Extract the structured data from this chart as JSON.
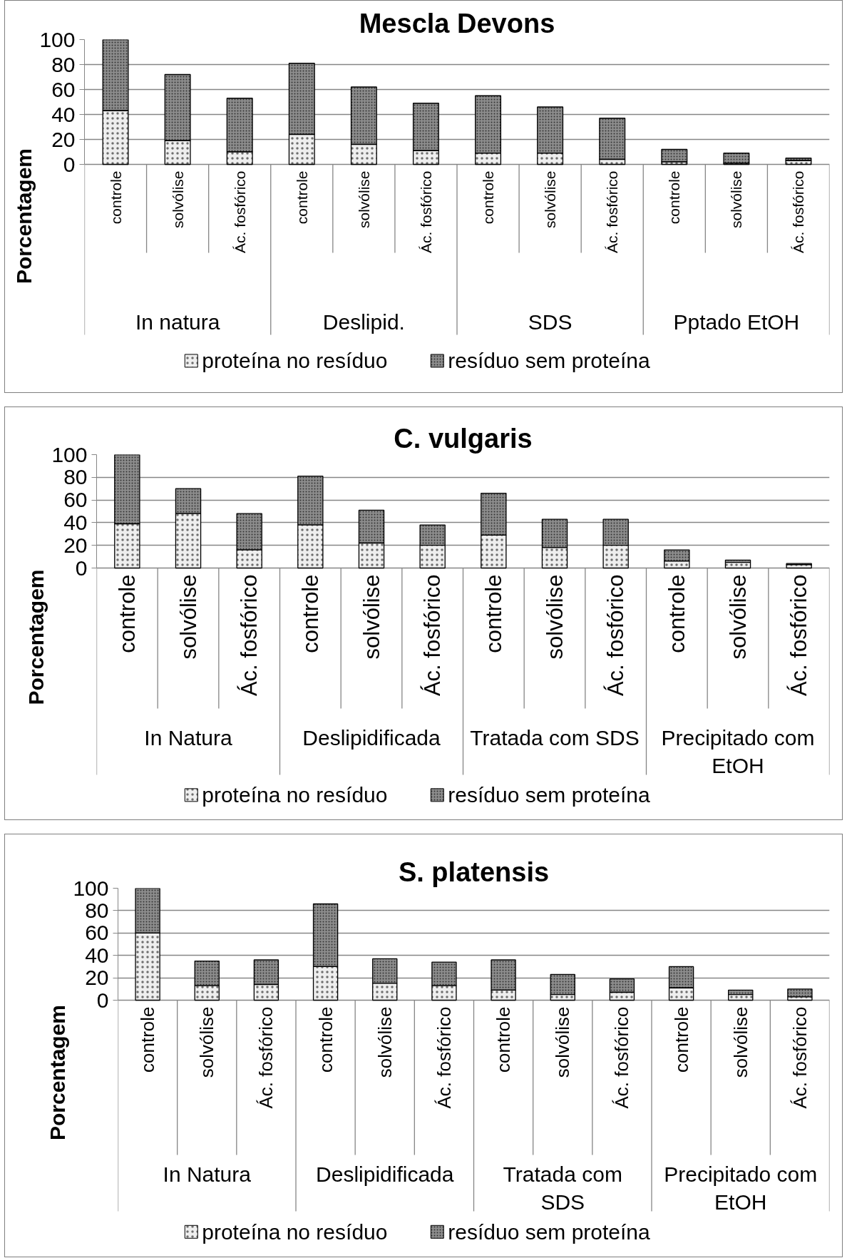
{
  "chart_data": [
    {
      "type": "bar",
      "stacked": true,
      "title": "Mescla Devons",
      "ylabel": "Porcentagem",
      "categories": [
        "controle",
        "solvólise",
        "Ác. fosfórico",
        "controle",
        "solvólise",
        "Ác. fosfórico",
        "controle",
        "solvólise",
        "Ác. fosfórico",
        "controle",
        "solvólise",
        "Ác. fosfórico"
      ],
      "annotations": [
        "In natura",
        "Deslipid.",
        "SDS",
        "Pptado EtOH"
      ],
      "series": [
        {
          "name": "proteína no resíduo",
          "color": "#eeeeee",
          "values": [
            43,
            19,
            10,
            24,
            16,
            11,
            9,
            9,
            4,
            2,
            1,
            3
          ]
        },
        {
          "name": "resíduo sem proteína",
          "color": "#8c8c8c",
          "values": [
            57,
            53,
            43,
            57,
            46,
            38,
            46,
            37,
            33,
            10,
            8,
            2
          ]
        }
      ],
      "ylim": [
        0,
        100
      ],
      "yticks": [
        0,
        20,
        40,
        60,
        80,
        100
      ],
      "grid": "y",
      "legend": "bottom"
    },
    {
      "type": "bar",
      "stacked": true,
      "title": "C. vulgaris",
      "ylabel": "Porcentagem",
      "categories": [
        "controle",
        "solvólise",
        "Ác. fosfórico",
        "controle",
        "solvólise",
        "Ác. fosfórico",
        "controle",
        "solvólise",
        "Ác. fosfórico",
        "controle",
        "solvólise",
        "Ác. fosfórico"
      ],
      "annotations": [
        "In Natura",
        "Deslipidificada",
        "Tratada com SDS",
        "Precipitado com EtOH"
      ],
      "series": [
        {
          "name": "proteína no resíduo",
          "color": "#eeeeee",
          "values": [
            39,
            48,
            16,
            38,
            22,
            20,
            29,
            18,
            20,
            6,
            5,
            3
          ]
        },
        {
          "name": "resíduo sem proteína",
          "color": "#8c8c8c",
          "values": [
            61,
            22,
            32,
            43,
            29,
            18,
            37,
            25,
            23,
            10,
            2,
            1
          ]
        }
      ],
      "ylim": [
        0,
        100
      ],
      "yticks": [
        0,
        20,
        40,
        60,
        80,
        100
      ],
      "grid": "y",
      "legend": "bottom"
    },
    {
      "type": "bar",
      "stacked": true,
      "title": "S. platensis",
      "ylabel": "Porcentagem",
      "categories": [
        "controle",
        "solvólise",
        "Ác. fosfórico",
        "controle",
        "solvólise",
        "Ác. fosfórico",
        "controle",
        "solvólise",
        "Ác. fosfórico",
        "controle",
        "solvólise",
        "Ác. fosfórico"
      ],
      "annotations": [
        "In Natura",
        "Deslipidificada",
        "Tratada com SDS",
        "Precipitado com EtOH"
      ],
      "series": [
        {
          "name": "proteína no resíduo",
          "color": "#eeeeee",
          "values": [
            60,
            13,
            14,
            30,
            15,
            13,
            9,
            5,
            7,
            11,
            5,
            3
          ]
        },
        {
          "name": "resíduo sem proteína",
          "color": "#8c8c8c",
          "values": [
            40,
            22,
            22,
            56,
            22,
            21,
            27,
            18,
            12,
            19,
            4,
            7
          ]
        }
      ],
      "ylim": [
        0,
        100
      ],
      "yticks": [
        0,
        20,
        40,
        60,
        80,
        100
      ],
      "grid": "y",
      "legend": "bottom"
    }
  ]
}
